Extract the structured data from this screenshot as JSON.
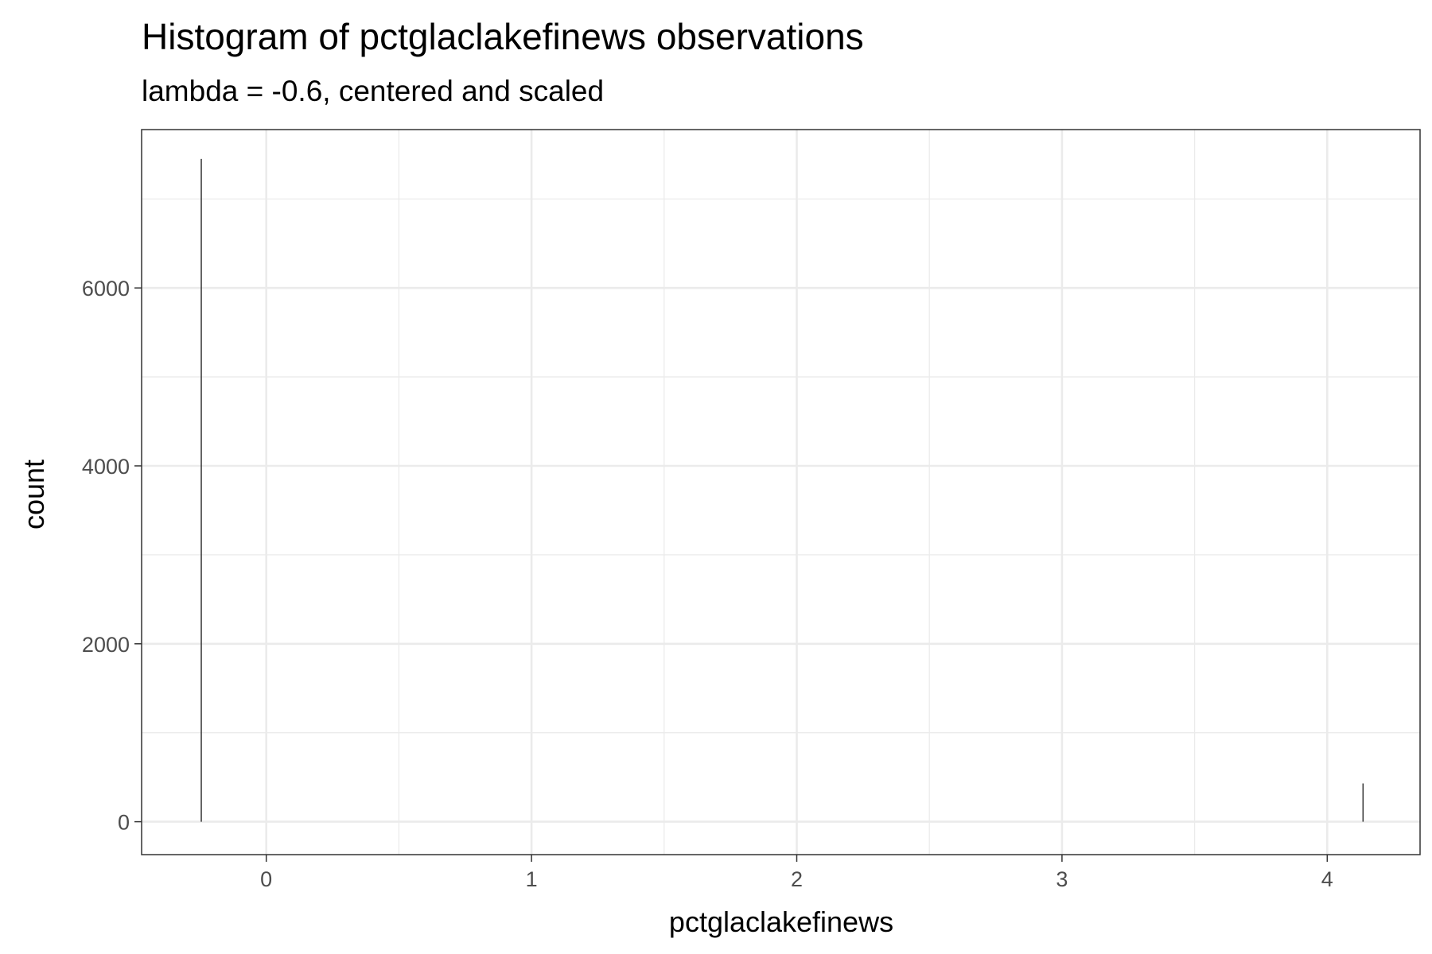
{
  "chart_data": {
    "type": "bar",
    "title": "Histogram of pctglaclakefinews observations",
    "subtitle": "lambda = -0.6, centered and scaled",
    "xlabel": "pctglaclakefinews",
    "ylabel": "count",
    "xlim": [
      -0.47,
      4.35
    ],
    "ylim": [
      -370,
      7780
    ],
    "x_ticks": [
      0,
      1,
      2,
      3,
      4
    ],
    "y_ticks": [
      0,
      2000,
      4000,
      6000
    ],
    "x_tick_labels": [
      "0",
      "1",
      "2",
      "3",
      "4"
    ],
    "y_tick_labels": [
      "0",
      "2000",
      "4000",
      "6000"
    ],
    "grid": true,
    "bars": [
      {
        "x": -0.245,
        "count": 7450
      },
      {
        "x": 4.135,
        "count": 430
      }
    ],
    "colors": {
      "bar_stroke": "#333333",
      "panel_border": "#333333",
      "grid": "#ebebeb"
    }
  }
}
